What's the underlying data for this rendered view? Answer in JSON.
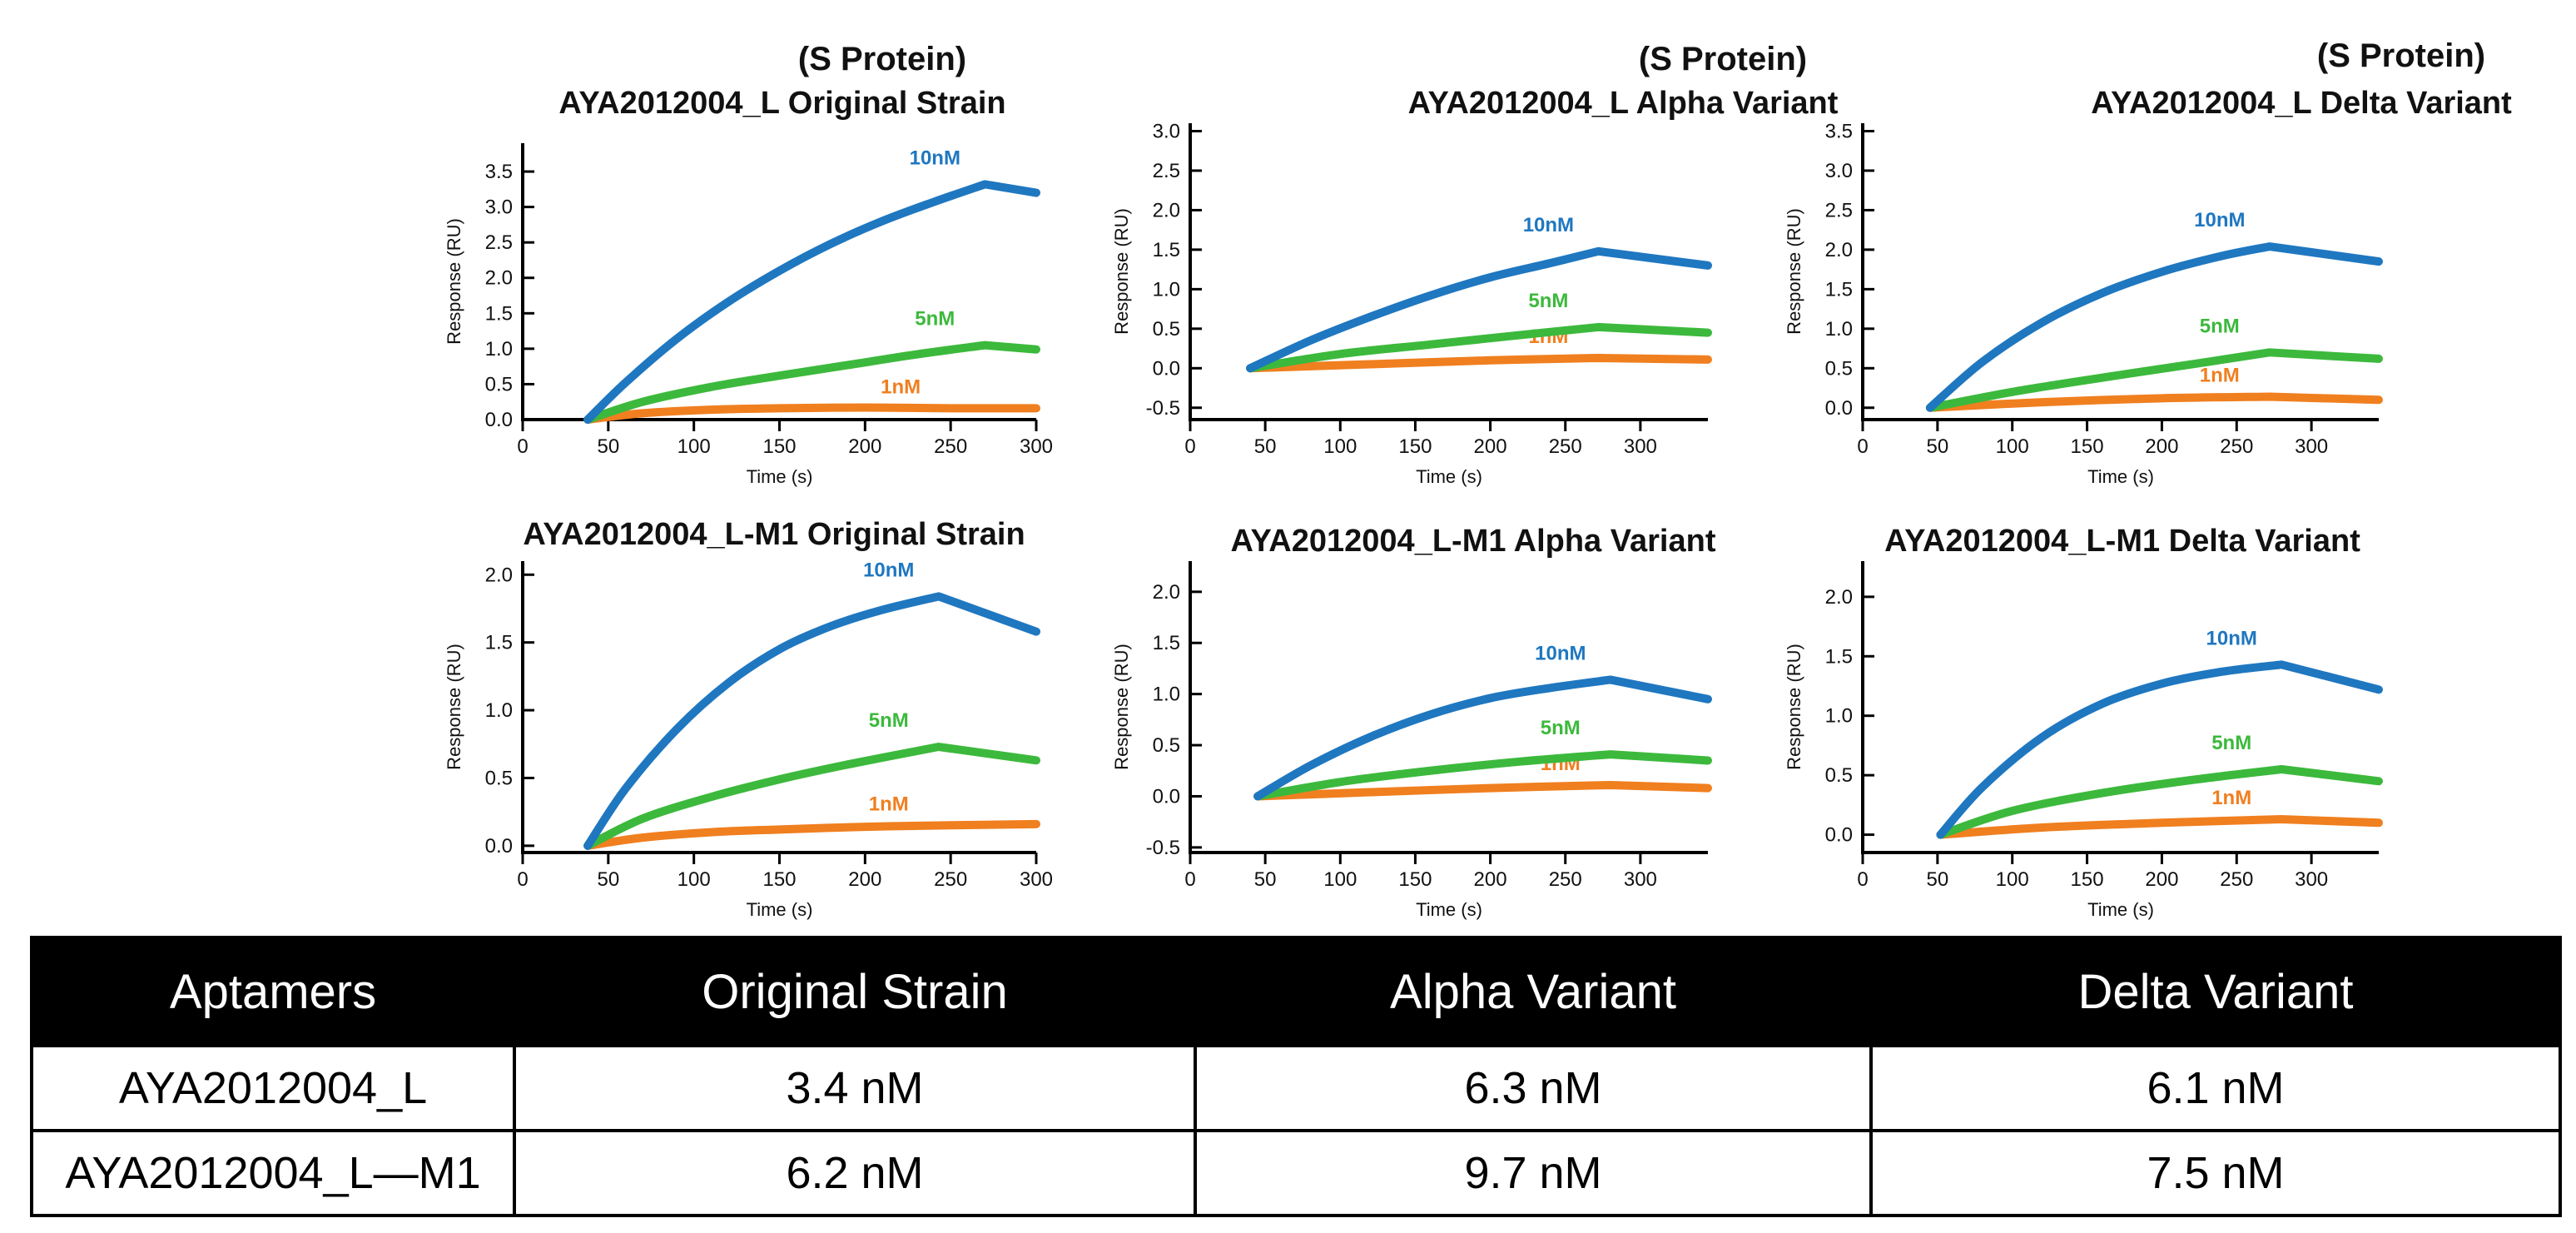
{
  "chart_data": [
    {
      "type": "line",
      "protein_label": "(S Protein)",
      "title": "AYA2012004_L    Original Strain",
      "xlabel": "Time (s)",
      "ylabel": "Response (RU)",
      "xlim": [
        0,
        300
      ],
      "ylim": [
        0,
        3.9
      ],
      "xticks": [
        0,
        50,
        100,
        150,
        200,
        250,
        300
      ],
      "yticks": [
        0.0,
        0.5,
        1.0,
        1.5,
        2.0,
        2.5,
        3.0,
        3.5
      ],
      "ytick_labels": [
        "0.0",
        "0.5",
        "1.0",
        "1.5",
        "2.0",
        "2.5",
        "3.0",
        "3.5"
      ],
      "series": [
        {
          "name": "10nM",
          "color": "#1f77c0",
          "x": [
            38,
            60,
            90,
            120,
            150,
            180,
            210,
            240,
            270,
            300
          ],
          "y": [
            0.0,
            0.52,
            1.14,
            1.66,
            2.1,
            2.48,
            2.8,
            3.07,
            3.32,
            3.2
          ]
        },
        {
          "name": "5nM",
          "color": "#3cb93c",
          "x": [
            38,
            70,
            110,
            150,
            190,
            230,
            270,
            300
          ],
          "y": [
            0.0,
            0.25,
            0.46,
            0.62,
            0.77,
            0.92,
            1.05,
            0.99
          ]
        },
        {
          "name": "1nM",
          "color": "#f07f1f",
          "x": [
            38,
            70,
            110,
            150,
            200,
            250,
            300
          ],
          "y": [
            0.0,
            0.09,
            0.14,
            0.16,
            0.17,
            0.16,
            0.16
          ]
        }
      ]
    },
    {
      "type": "line",
      "protein_label": "(S Protein)",
      "title": "AYA2012004_L    Alpha  Variant",
      "xlabel": "Time (s)",
      "ylabel": "Response (RU)",
      "xlim": [
        0,
        345
      ],
      "ylim": [
        -0.65,
        3.1
      ],
      "xticks": [
        0,
        50,
        100,
        150,
        200,
        250,
        300
      ],
      "yticks": [
        -0.5,
        0.0,
        0.5,
        1.0,
        1.5,
        2.0,
        2.5,
        3.0
      ],
      "ytick_labels": [
        "-0.5",
        "0.0",
        "0.5",
        "1.0",
        "1.5",
        "2.0",
        "2.5",
        "3.0"
      ],
      "series": [
        {
          "name": "10nM",
          "color": "#1f77c0",
          "x": [
            40,
            80,
            120,
            160,
            200,
            240,
            272,
            345
          ],
          "y": [
            0.0,
            0.35,
            0.65,
            0.92,
            1.15,
            1.33,
            1.48,
            1.3
          ]
        },
        {
          "name": "5nM",
          "color": "#3cb93c",
          "x": [
            40,
            100,
            160,
            220,
            272,
            345
          ],
          "y": [
            0.0,
            0.18,
            0.3,
            0.42,
            0.52,
            0.45
          ]
        },
        {
          "name": "1nM",
          "color": "#f07f1f",
          "x": [
            40,
            120,
            200,
            272,
            345
          ],
          "y": [
            0.0,
            0.05,
            0.1,
            0.13,
            0.11
          ]
        }
      ]
    },
    {
      "type": "line",
      "protein_label": "(S Protein)",
      "title": "AYA2012004_L    Delta  Variant",
      "xlabel": "Time (s)",
      "ylabel": "Response (RU)",
      "xlim": [
        0,
        345
      ],
      "ylim": [
        -0.15,
        3.6
      ],
      "xticks": [
        0,
        50,
        100,
        150,
        200,
        250,
        300
      ],
      "yticks": [
        0.0,
        0.5,
        1.0,
        1.5,
        2.0,
        2.5,
        3.0,
        3.5
      ],
      "ytick_labels": [
        "0.0",
        "0.5",
        "1.0",
        "1.5",
        "2.0",
        "2.5",
        "3.0",
        "3.5"
      ],
      "series": [
        {
          "name": "10nM",
          "color": "#1f77c0",
          "x": [
            45,
            80,
            120,
            160,
            200,
            240,
            272,
            345
          ],
          "y": [
            0.0,
            0.58,
            1.08,
            1.45,
            1.72,
            1.92,
            2.04,
            1.85
          ]
        },
        {
          "name": "5nM",
          "color": "#3cb93c",
          "x": [
            45,
            100,
            160,
            220,
            272,
            345
          ],
          "y": [
            0.0,
            0.2,
            0.38,
            0.55,
            0.7,
            0.62
          ]
        },
        {
          "name": "1nM",
          "color": "#f07f1f",
          "x": [
            45,
            120,
            200,
            272,
            345
          ],
          "y": [
            0.0,
            0.07,
            0.12,
            0.14,
            0.1
          ]
        }
      ]
    },
    {
      "type": "line",
      "protein_label": "",
      "title": "AYA2012004_L-M1    Original Strain",
      "xlabel": "Time (s)",
      "ylabel": "Response (RU)",
      "xlim": [
        0,
        300
      ],
      "ylim": [
        -0.05,
        2.1
      ],
      "xticks": [
        0,
        50,
        100,
        150,
        200,
        250,
        300
      ],
      "yticks": [
        0.0,
        0.5,
        1.0,
        1.5,
        2.0
      ],
      "ytick_labels": [
        "0.0",
        "0.5",
        "1.0",
        "1.5",
        "2.0"
      ],
      "series": [
        {
          "name": "10nM",
          "color": "#1f77c0",
          "x": [
            38,
            60,
            90,
            120,
            150,
            180,
            210,
            243,
            300
          ],
          "y": [
            0.0,
            0.42,
            0.86,
            1.2,
            1.45,
            1.62,
            1.74,
            1.84,
            1.58
          ]
        },
        {
          "name": "5nM",
          "color": "#3cb93c",
          "x": [
            38,
            70,
            110,
            150,
            190,
            243,
            300
          ],
          "y": [
            0.0,
            0.2,
            0.36,
            0.49,
            0.6,
            0.73,
            0.63
          ]
        },
        {
          "name": "1nM",
          "color": "#f07f1f",
          "x": [
            38,
            70,
            110,
            150,
            200,
            243,
            300
          ],
          "y": [
            0.0,
            0.06,
            0.1,
            0.12,
            0.14,
            0.15,
            0.16
          ]
        }
      ]
    },
    {
      "type": "line",
      "protein_label": "",
      "title": "AYA2012004_L-M1    Alpha  Variant",
      "xlabel": "Time (s)",
      "ylabel": "Response (RU)",
      "xlim": [
        0,
        345
      ],
      "ylim": [
        -0.55,
        2.3
      ],
      "xticks": [
        0,
        50,
        100,
        150,
        200,
        250,
        300
      ],
      "yticks": [
        -0.5,
        0.0,
        0.5,
        1.0,
        1.5,
        2.0
      ],
      "ytick_labels": [
        "-0.5",
        "0.0",
        "0.5",
        "1.0",
        "1.5",
        "2.0"
      ],
      "series": [
        {
          "name": "10nM",
          "color": "#1f77c0",
          "x": [
            45,
            80,
            120,
            160,
            200,
            240,
            280,
            345
          ],
          "y": [
            0.0,
            0.3,
            0.58,
            0.8,
            0.96,
            1.06,
            1.14,
            0.95
          ]
        },
        {
          "name": "5nM",
          "color": "#3cb93c",
          "x": [
            45,
            100,
            160,
            220,
            280,
            345
          ],
          "y": [
            0.0,
            0.14,
            0.25,
            0.34,
            0.41,
            0.35
          ]
        },
        {
          "name": "1nM",
          "color": "#f07f1f",
          "x": [
            45,
            120,
            200,
            280,
            345
          ],
          "y": [
            0.0,
            0.04,
            0.08,
            0.11,
            0.08
          ]
        }
      ]
    },
    {
      "type": "line",
      "protein_label": "",
      "title": "AYA2012004_L-M1    Delta Variant",
      "xlabel": "Time (s)",
      "ylabel": "Response (RU)",
      "xlim": [
        0,
        345
      ],
      "ylim": [
        -0.15,
        2.3
      ],
      "xticks": [
        0,
        50,
        100,
        150,
        200,
        250,
        300
      ],
      "yticks": [
        0.0,
        0.5,
        1.0,
        1.5,
        2.0
      ],
      "ytick_labels": [
        "0.0",
        "0.5",
        "1.0",
        "1.5",
        "2.0"
      ],
      "series": [
        {
          "name": "10nM",
          "color": "#1f77c0",
          "x": [
            52,
            80,
            120,
            160,
            200,
            240,
            280,
            345
          ],
          "y": [
            0.0,
            0.4,
            0.82,
            1.1,
            1.27,
            1.37,
            1.43,
            1.22
          ]
        },
        {
          "name": "5nM",
          "color": "#3cb93c",
          "x": [
            52,
            100,
            160,
            220,
            280,
            345
          ],
          "y": [
            0.0,
            0.2,
            0.35,
            0.46,
            0.55,
            0.45
          ]
        },
        {
          "name": "1nM",
          "color": "#f07f1f",
          "x": [
            52,
            120,
            200,
            280,
            345
          ],
          "y": [
            0.0,
            0.06,
            0.1,
            0.13,
            0.1
          ]
        }
      ]
    }
  ],
  "table": {
    "headers": [
      "Aptamers",
      "Original Strain",
      "Alpha Variant",
      "Delta Variant"
    ],
    "rows": [
      [
        "AYA2012004_L",
        "3.4 nM",
        "6.3 nM",
        "6.1  nM"
      ],
      [
        "AYA2012004_L―M1",
        "6.2 nM",
        "9.7 nM",
        "7.5 nM"
      ]
    ]
  }
}
